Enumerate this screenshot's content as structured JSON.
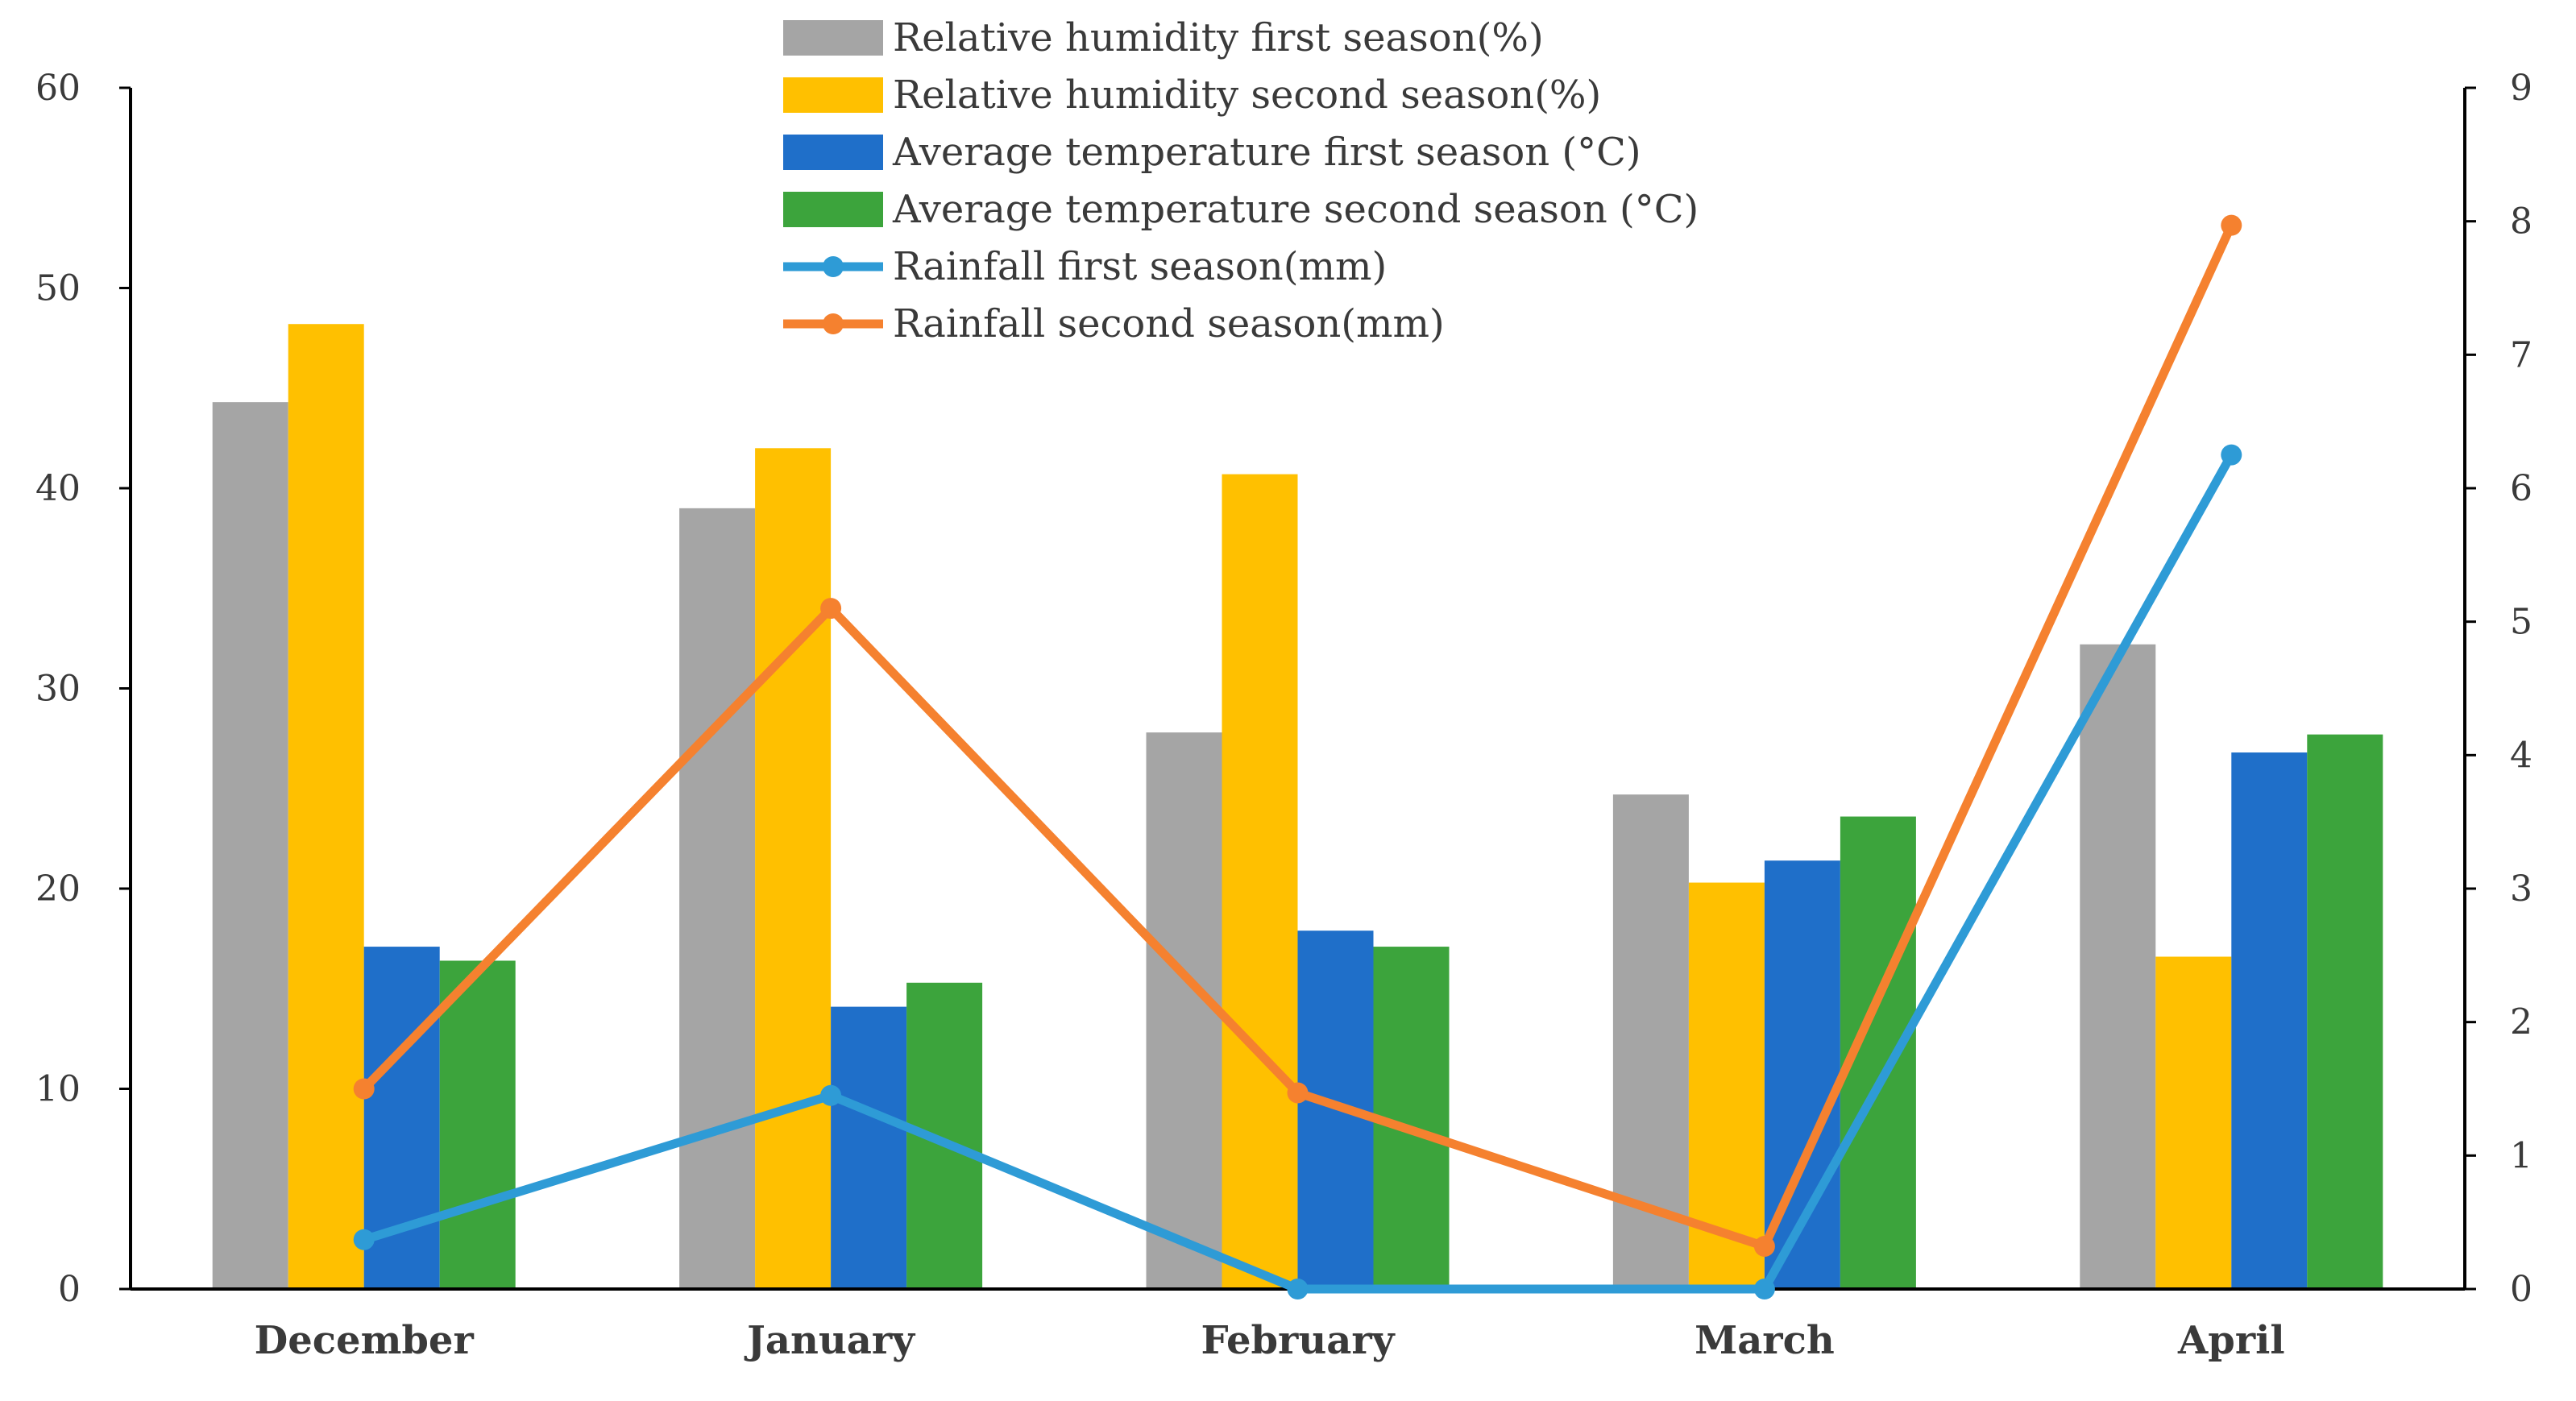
{
  "chart_data": {
    "type": "bar",
    "title": "",
    "categories": [
      "December",
      "January",
      "February",
      "March",
      "April"
    ],
    "series": [
      {
        "name": "Relative humidity  first season(%)",
        "kind": "bar",
        "axis": "left",
        "color": "#a5a5a5",
        "values": [
          44.3,
          39.0,
          27.8,
          24.7,
          32.2
        ]
      },
      {
        "name": "Relative humidity  second season(%)",
        "kind": "bar",
        "axis": "left",
        "color": "#ffc000",
        "values": [
          48.2,
          42.0,
          40.7,
          20.3,
          16.6
        ]
      },
      {
        "name": "Average temperature first season (°C)",
        "kind": "bar",
        "axis": "left",
        "color": "#1f6fc9",
        "values": [
          17.1,
          14.1,
          17.9,
          21.4,
          26.8
        ]
      },
      {
        "name": "Average temperature second season (°C)",
        "kind": "bar",
        "axis": "left",
        "color": "#3ca43c",
        "values": [
          16.4,
          15.3,
          17.1,
          23.6,
          27.7
        ]
      },
      {
        "name": "Rainfall  first season(mm)",
        "kind": "line",
        "axis": "right",
        "color": "#2e9bd6",
        "values": [
          0.37,
          1.45,
          0.0,
          0.0,
          6.25
        ]
      },
      {
        "name": "Rainfall  second season(mm)",
        "kind": "line",
        "axis": "right",
        "color": "#f5812f",
        "values": [
          1.5,
          5.1,
          1.47,
          0.32,
          7.97
        ]
      }
    ],
    "y_left": {
      "range": [
        0,
        60
      ],
      "ticks": [
        "0",
        "10",
        "20",
        "30",
        "40",
        "50",
        "60"
      ]
    },
    "y_right": {
      "range": [
        0,
        9
      ],
      "ticks": [
        "0",
        "1",
        "2",
        "3",
        "4",
        "5",
        "6",
        "7",
        "8",
        "9"
      ]
    },
    "xlabel": "",
    "ylabel": "",
    "grid": false,
    "legend_position": "top-center"
  }
}
